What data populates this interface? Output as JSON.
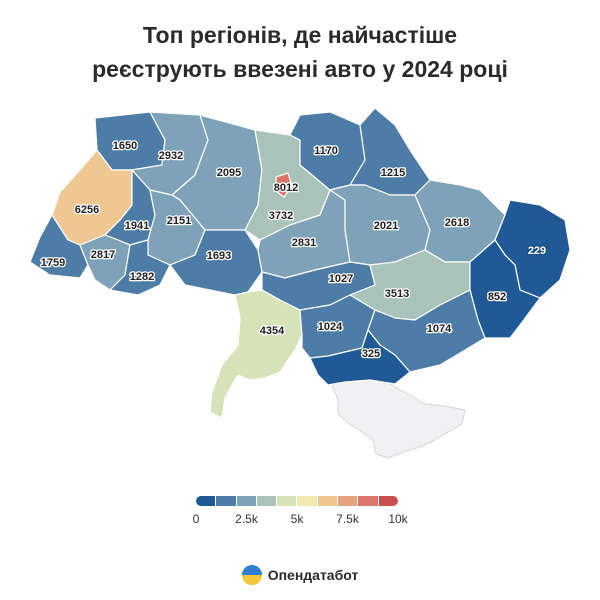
{
  "title": {
    "line1": "Топ регіонів, де найчастіше",
    "line2": "реєструють ввезені авто у 2024 році"
  },
  "chart_data": {
    "type": "choropleth",
    "regions": [
      {
        "id": "volyn",
        "value": 1650,
        "label": "1650"
      },
      {
        "id": "rivne",
        "value": 2932,
        "label": "2932"
      },
      {
        "id": "lviv",
        "value": 6256,
        "label": "6256"
      },
      {
        "id": "ternopil",
        "value": 1941,
        "label": "1941"
      },
      {
        "id": "khmelnytskyi",
        "value": 2151,
        "label": "2151"
      },
      {
        "id": "zhytomyr",
        "value": 2095,
        "label": "2095"
      },
      {
        "id": "kyiv-city",
        "value": 8012,
        "label": "8012"
      },
      {
        "id": "kyiv-oblast",
        "value": 3732,
        "label": "3732"
      },
      {
        "id": "chernihiv",
        "value": 1170,
        "label": "1170"
      },
      {
        "id": "sumy",
        "value": 1215,
        "label": "1215"
      },
      {
        "id": "poltava",
        "value": 2021,
        "label": "2021"
      },
      {
        "id": "kharkiv",
        "value": 2618,
        "label": "2618"
      },
      {
        "id": "luhansk",
        "value": 229,
        "label": "229"
      },
      {
        "id": "zakarpattia",
        "value": 1759,
        "label": "1759"
      },
      {
        "id": "ivano-frankivsk",
        "value": 2817,
        "label": "2817"
      },
      {
        "id": "chernivtsi",
        "value": 1282,
        "label": "1282"
      },
      {
        "id": "vinnytsia",
        "value": 1693,
        "label": "1693"
      },
      {
        "id": "cherkasy",
        "value": 2831,
        "label": "2831"
      },
      {
        "id": "kirovohrad",
        "value": 1027,
        "label": "1027"
      },
      {
        "id": "dnipropetrovsk",
        "value": 3513,
        "label": "3513"
      },
      {
        "id": "donetsk",
        "value": 852,
        "label": "852"
      },
      {
        "id": "odesa",
        "value": 4354,
        "label": "4354"
      },
      {
        "id": "mykolaiv",
        "value": 1024,
        "label": "1024"
      },
      {
        "id": "zaporizhzhia",
        "value": 1074,
        "label": "1074"
      },
      {
        "id": "kherson",
        "value": 325,
        "label": "325"
      },
      {
        "id": "crimea",
        "value": null,
        "label": ""
      }
    ],
    "scale": {
      "min": 0,
      "max": 10000,
      "ticks": [
        "0",
        "2.5k",
        "5k",
        "7.5k",
        "10k"
      ],
      "colors": [
        "#1f5a96",
        "#4d7ca7",
        "#7ea2b8",
        "#a9c3ba",
        "#d6e3b8",
        "#f1eab0",
        "#efc792",
        "#e6a37f",
        "#d9776b",
        "#c8504f"
      ]
    }
  },
  "brand": {
    "name": "Опендатабот"
  }
}
